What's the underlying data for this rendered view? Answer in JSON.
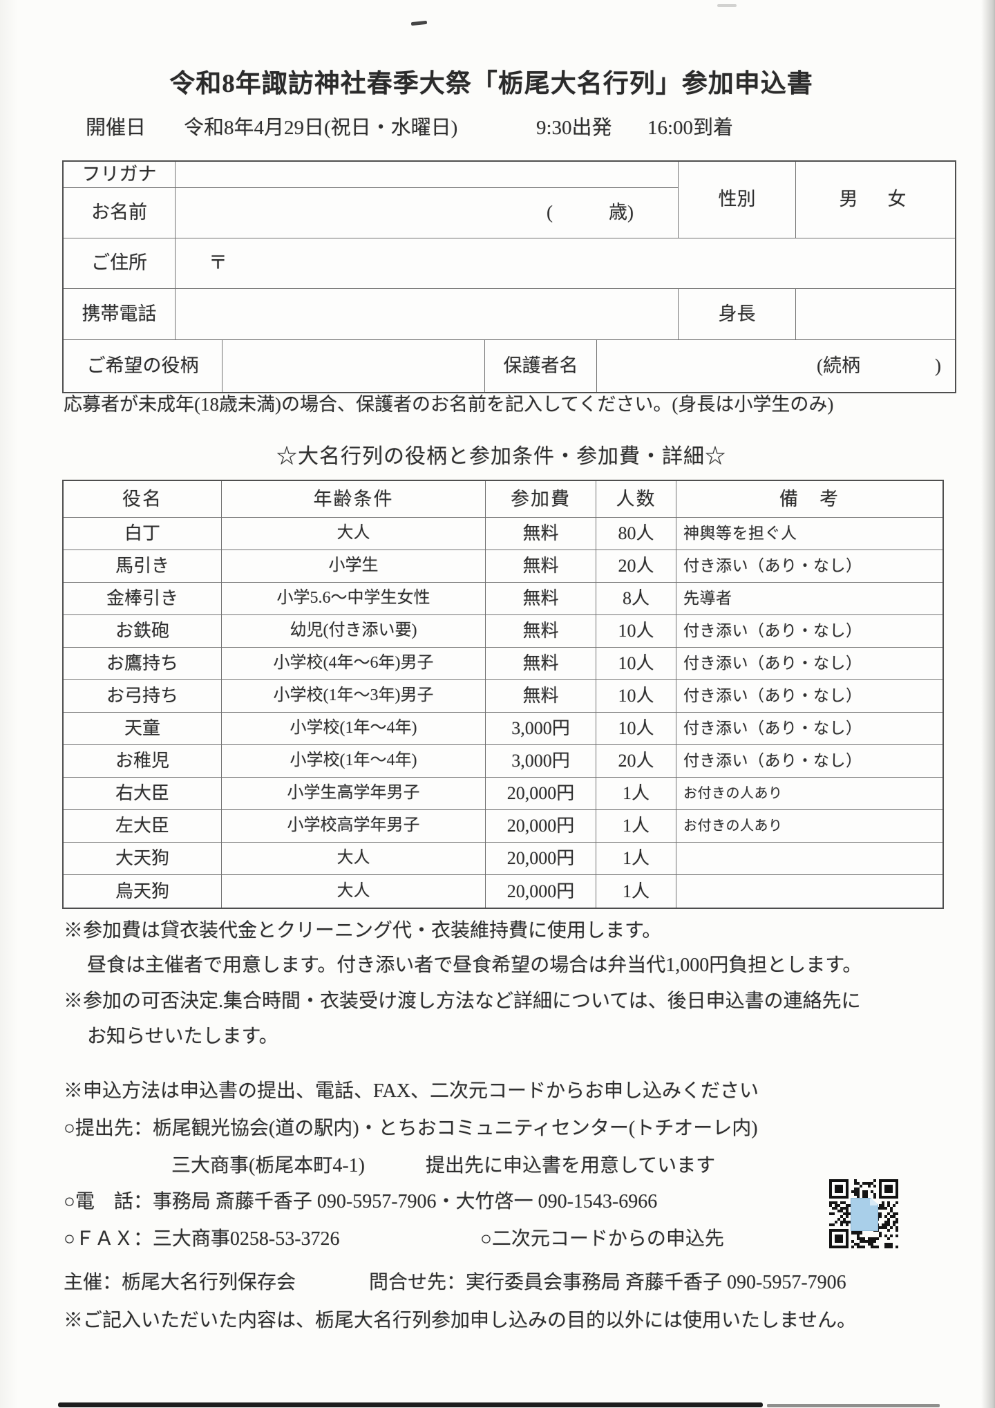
{
  "header": {
    "title": "令和8年諏訪神社春季大祭「栃尾大名行列」参加申込書",
    "date_label": "開催日",
    "date_value": "令和8年4月29日(祝日・水曜日)",
    "departure": "9:30出発",
    "arrival": "16:00到着"
  },
  "applicant_form": {
    "furigana_label": "フリガナ",
    "name_label": "お名前",
    "age_hint": "(　　　歳)",
    "gender_label": "性別",
    "gender_options": "男　女",
    "address_label": "ご住所",
    "postal_mark": "〒",
    "phone_label": "携帯電話",
    "height_label": "身長",
    "role_label": "ご希望の役柄",
    "guardian_label": "保護者名",
    "relation_hint": "(続柄　　　　)",
    "minor_note": "応募者が未成年(18歳未満)の場合、保護者のお名前を記入してください。(身長は小学生のみ)"
  },
  "roles_section": {
    "title": "☆大名行列の役柄と参加条件・参加費・詳細☆",
    "headers": [
      "役名",
      "年齢条件",
      "参加費",
      "人数",
      "備　考"
    ],
    "rows": [
      [
        "白丁",
        "大人",
        "無料",
        "80人",
        "神輿等を担ぐ人"
      ],
      [
        "馬引き",
        "小学生",
        "無料",
        "20人",
        "付き添い（あり・なし）"
      ],
      [
        "金棒引き",
        "小学5.6～中学生女性",
        "無料",
        "8人",
        "先導者"
      ],
      [
        "お鉄砲",
        "幼児(付き添い要)",
        "無料",
        "10人",
        "付き添い（あり・なし）"
      ],
      [
        "お鷹持ち",
        "小学校(4年～6年)男子",
        "無料",
        "10人",
        "付き添い（あり・なし）"
      ],
      [
        "お弓持ち",
        "小学校(1年～3年)男子",
        "無料",
        "10人",
        "付き添い（あり・なし）"
      ],
      [
        "天童",
        "小学校(1年～4年)",
        "3,000円",
        "10人",
        "付き添い（あり・なし）"
      ],
      [
        "お稚児",
        "小学校(1年～4年)",
        "3,000円",
        "20人",
        "付き添い（あり・なし）"
      ],
      [
        "右大臣",
        "小学生高学年男子",
        "20,000円",
        "1人",
        "お付きの人あり"
      ],
      [
        "左大臣",
        "小学校高学年男子",
        "20,000円",
        "1人",
        "お付きの人あり"
      ],
      [
        "大天狗",
        "大人",
        "20,000円",
        "1人",
        ""
      ],
      [
        "烏天狗",
        "大人",
        "20,000円",
        "1人",
        ""
      ]
    ]
  },
  "notes": {
    "fee_use": "※参加費は貸衣装代金とクリーニング代・衣装維持費に使用します。",
    "lunch": "昼食は主催者で用意します。付き添い者で昼食希望の場合は弁当代1,000円負担とします。",
    "decision": "※参加の可否決定.集合時間・衣装受け渡し方法など詳細については、後日申込書の連絡先に",
    "decision2": "お知らせいたします。"
  },
  "application": {
    "method": "※申込方法は申込書の提出、電話、FAX、二次元コードからお申し込みください",
    "submit_line1": "○提出先：栃尾観光協会(道の駅内)・とちおコミュニティセンター(トチオーレ内)",
    "submit_line2a": "三大商事(栃尾本町4-1)",
    "submit_line2b": "提出先に申込書を用意しています",
    "phone_line": "○電　話：事務局 斎藤千香子 090-5957-7906・大竹啓一 090-1543-6966",
    "fax_line": "○ＦＡＸ：三大商事0258-53-3726",
    "qr_line": "○二次元コードからの申込先"
  },
  "footer": {
    "organizer": "主催：栃尾大名行列保存会",
    "contact": "問合せ先：実行委員会事務局 斉藤千香子 090-5957-7906",
    "privacy": "※ご記入いただいた内容は、栃尾大名行列参加申し込みの目的以外には使用いたしません。"
  }
}
